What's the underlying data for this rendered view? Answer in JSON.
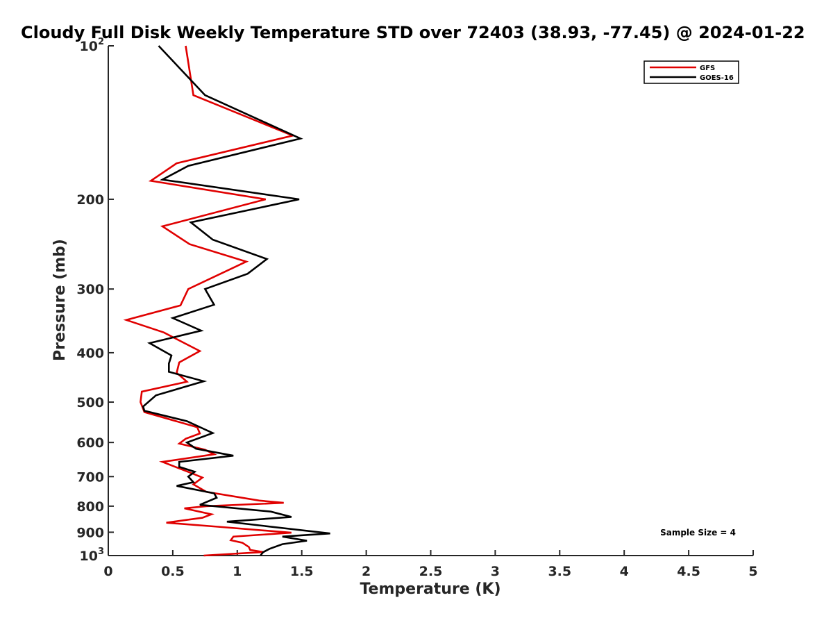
{
  "chart_data": {
    "type": "line",
    "title": "Cloudy Full Disk Weekly Temperature STD over 72403 (38.93, -77.45) @ 2024-01-22",
    "xlabel": "Temperature (K)",
    "ylabel": "Pressure (mb)",
    "xlim": [
      0,
      5
    ],
    "ylim": [
      100,
      1000
    ],
    "y_scale": "log",
    "y_reversed": true,
    "grid": false,
    "legend_position": "top-right",
    "x_ticks": [
      0,
      0.5,
      1,
      1.5,
      2,
      2.5,
      3,
      3.5,
      4,
      4.5,
      5
    ],
    "x_tick_labels": [
      "0",
      "0.5",
      "1",
      "1.5",
      "2",
      "2.5",
      "3",
      "3.5",
      "4",
      "4.5",
      "5"
    ],
    "y_ticks": [
      {
        "value": 100,
        "base": "10",
        "exp": "2"
      },
      {
        "value": 200,
        "label": "200"
      },
      {
        "value": 300,
        "label": "300"
      },
      {
        "value": 400,
        "label": "400"
      },
      {
        "value": 500,
        "label": "500"
      },
      {
        "value": 600,
        "label": "600"
      },
      {
        "value": 700,
        "label": "700"
      },
      {
        "value": 800,
        "label": "800"
      },
      {
        "value": 900,
        "label": "900"
      },
      {
        "value": 1000,
        "base": "10",
        "exp": "3"
      }
    ],
    "annotation": "Sample Size = 4",
    "series": [
      {
        "name": "GFS",
        "color": "#e00000",
        "points": [
          [
            0.6,
            100
          ],
          [
            0.66,
            125
          ],
          [
            1.43,
            150
          ],
          [
            0.53,
            170
          ],
          [
            0.33,
            184
          ],
          [
            1.22,
            200
          ],
          [
            0.42,
            226
          ],
          [
            0.63,
            245
          ],
          [
            1.07,
            265
          ],
          [
            0.62,
            300
          ],
          [
            0.56,
            323
          ],
          [
            0.14,
            345
          ],
          [
            0.43,
            365
          ],
          [
            0.71,
            397
          ],
          [
            0.55,
            418
          ],
          [
            0.53,
            438
          ],
          [
            0.61,
            456
          ],
          [
            0.26,
            477
          ],
          [
            0.25,
            500
          ],
          [
            0.28,
            523
          ],
          [
            0.69,
            560
          ],
          [
            0.71,
            576
          ],
          [
            0.6,
            590
          ],
          [
            0.55,
            603
          ],
          [
            0.75,
            620
          ],
          [
            0.82,
            633
          ],
          [
            0.42,
            655
          ],
          [
            0.65,
            690
          ],
          [
            0.73,
            703
          ],
          [
            0.66,
            725
          ],
          [
            0.76,
            750
          ],
          [
            1.17,
            780
          ],
          [
            1.36,
            788
          ],
          [
            0.76,
            800
          ],
          [
            0.59,
            808
          ],
          [
            0.8,
            830
          ],
          [
            0.73,
            843
          ],
          [
            0.45,
            862
          ],
          [
            0.85,
            878
          ],
          [
            1.42,
            902
          ],
          [
            0.97,
            918
          ],
          [
            0.95,
            933
          ],
          [
            1.04,
            944
          ],
          [
            1.09,
            962
          ],
          [
            1.1,
            975
          ],
          [
            1.2,
            984
          ],
          [
            0.74,
            1000
          ]
        ]
      },
      {
        "name": "GOES-16",
        "color": "#000000",
        "points": [
          [
            0.39,
            100
          ],
          [
            0.75,
            125
          ],
          [
            1.49,
            152
          ],
          [
            0.62,
            172
          ],
          [
            0.42,
            183
          ],
          [
            1.48,
            200
          ],
          [
            0.64,
            222
          ],
          [
            0.81,
            240
          ],
          [
            1.23,
            262
          ],
          [
            1.08,
            280
          ],
          [
            0.75,
            300
          ],
          [
            0.82,
            322
          ],
          [
            0.5,
            342
          ],
          [
            0.72,
            362
          ],
          [
            0.32,
            383
          ],
          [
            0.49,
            405
          ],
          [
            0.47,
            420
          ],
          [
            0.47,
            436
          ],
          [
            0.74,
            455
          ],
          [
            0.37,
            485
          ],
          [
            0.27,
            510
          ],
          [
            0.28,
            520
          ],
          [
            0.61,
            545
          ],
          [
            0.81,
            575
          ],
          [
            0.61,
            600
          ],
          [
            0.68,
            617
          ],
          [
            0.97,
            637
          ],
          [
            0.55,
            655
          ],
          [
            0.55,
            670
          ],
          [
            0.67,
            685
          ],
          [
            0.62,
            700
          ],
          [
            0.66,
            718
          ],
          [
            0.53,
            730
          ],
          [
            0.82,
            755
          ],
          [
            0.84,
            770
          ],
          [
            0.71,
            795
          ],
          [
            1.26,
            820
          ],
          [
            1.42,
            840
          ],
          [
            0.92,
            858
          ],
          [
            1.72,
            905
          ],
          [
            1.35,
            918
          ],
          [
            1.54,
            935
          ],
          [
            1.35,
            950
          ],
          [
            1.25,
            970
          ],
          [
            1.2,
            985
          ],
          [
            1.18,
            1000
          ]
        ]
      }
    ]
  }
}
